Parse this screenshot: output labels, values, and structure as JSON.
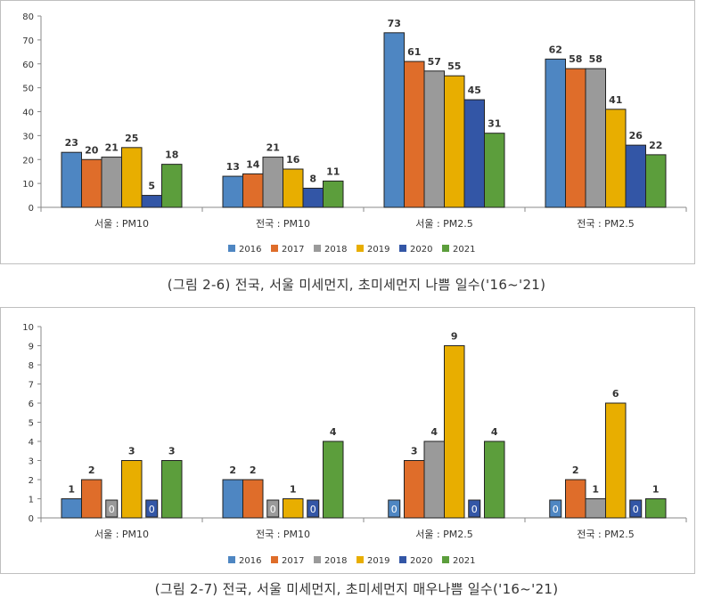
{
  "colors": {
    "2016": "#4e86c2",
    "2017": "#df6d2a",
    "2018": "#9a9a9a",
    "2019": "#e8ae00",
    "2020": "#3356a6",
    "2021": "#5c9e3c"
  },
  "captions": {
    "fig1": "(그림 2-6) 전국, 서울 미세먼지, 초미세먼지 나쁨 일수('16~'21)",
    "fig2": "(그림 2-7) 전국, 서울 미세먼지, 초미세먼지 매우나쁨 일수('16~'21)"
  },
  "chart_data": [
    {
      "type": "bar",
      "categories": [
        "서울 : PM10",
        "전국 : PM10",
        "서울 : PM2.5",
        "전국 : PM2.5"
      ],
      "series": [
        {
          "name": "2016",
          "values": [
            23,
            13,
            73,
            62
          ]
        },
        {
          "name": "2017",
          "values": [
            20,
            14,
            61,
            58
          ]
        },
        {
          "name": "2018",
          "values": [
            21,
            21,
            57,
            58
          ]
        },
        {
          "name": "2019",
          "values": [
            25,
            16,
            55,
            41
          ]
        },
        {
          "name": "2020",
          "values": [
            5,
            8,
            45,
            26
          ]
        },
        {
          "name": "2021",
          "values": [
            18,
            11,
            31,
            22
          ]
        }
      ],
      "yticks": [
        "0",
        "10",
        "20",
        "30",
        "40",
        "50",
        "60",
        "70",
        "80"
      ],
      "ylim": [
        0,
        80
      ],
      "legend": "bottom"
    },
    {
      "type": "bar",
      "categories": [
        "서울 : PM10",
        "전국 : PM10",
        "서울 : PM2.5",
        "전국 : PM2.5"
      ],
      "series": [
        {
          "name": "2016",
          "values": [
            1,
            2,
            0,
            0
          ]
        },
        {
          "name": "2017",
          "values": [
            2,
            2,
            3,
            2
          ]
        },
        {
          "name": "2018",
          "values": [
            0,
            0,
            4,
            1
          ]
        },
        {
          "name": "2019",
          "values": [
            3,
            1,
            9,
            6
          ]
        },
        {
          "name": "2020",
          "values": [
            0,
            0,
            0,
            0
          ]
        },
        {
          "name": "2021",
          "values": [
            3,
            4,
            4,
            1
          ]
        }
      ],
      "yticks": [
        "0",
        "1",
        "2",
        "3",
        "4",
        "5",
        "6",
        "7",
        "8",
        "9",
        "10"
      ],
      "ylim": [
        0,
        10
      ],
      "legend": "bottom"
    }
  ]
}
